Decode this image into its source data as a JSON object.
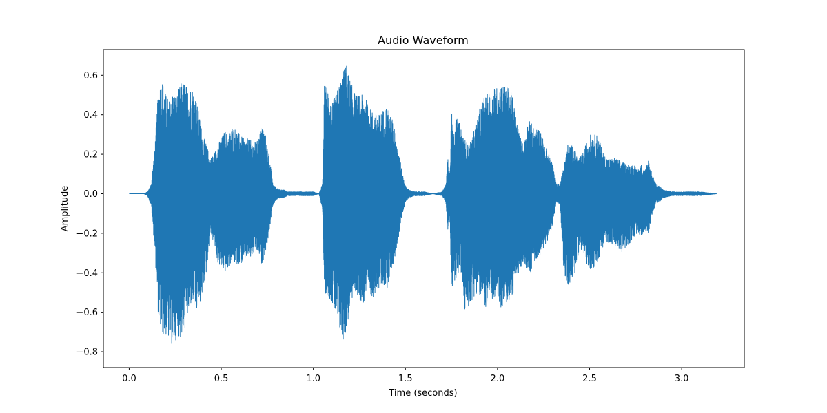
{
  "chart_data": {
    "type": "line",
    "title": "Audio Waveform",
    "xlabel": "Time (seconds)",
    "ylabel": "Amplitude",
    "xlim": [
      -0.14,
      3.34
    ],
    "ylim": [
      -0.88,
      0.73
    ],
    "xticks": [
      0.0,
      0.5,
      1.0,
      1.5,
      2.0,
      2.5,
      3.0
    ],
    "xtick_labels": [
      "0.0",
      "0.5",
      "1.0",
      "1.5",
      "2.0",
      "2.5",
      "3.0"
    ],
    "yticks": [
      -0.8,
      -0.6,
      -0.4,
      -0.2,
      0.0,
      0.2,
      0.4,
      0.6
    ],
    "ytick_labels": [
      "−0.8",
      "−0.6",
      "−0.4",
      "−0.2",
      "0.0",
      "0.2",
      "0.4",
      "0.6"
    ],
    "grid": false,
    "legend": "none",
    "color": "#1f77b4",
    "duration": 3.19,
    "series": [
      {
        "envelope_upper": [
          [
            0.0,
            0.0
          ],
          [
            0.08,
            0.0
          ],
          [
            0.1,
            0.01
          ],
          [
            0.12,
            0.05
          ],
          [
            0.14,
            0.25
          ],
          [
            0.16,
            0.55
          ],
          [
            0.18,
            0.58
          ],
          [
            0.2,
            0.5
          ],
          [
            0.22,
            0.47
          ],
          [
            0.24,
            0.52
          ],
          [
            0.26,
            0.5
          ],
          [
            0.28,
            0.56
          ],
          [
            0.3,
            0.57
          ],
          [
            0.32,
            0.53
          ],
          [
            0.34,
            0.55
          ],
          [
            0.36,
            0.5
          ],
          [
            0.38,
            0.4
          ],
          [
            0.4,
            0.3
          ],
          [
            0.42,
            0.25
          ],
          [
            0.44,
            0.18
          ],
          [
            0.46,
            0.2
          ],
          [
            0.48,
            0.25
          ],
          [
            0.5,
            0.28
          ],
          [
            0.52,
            0.32
          ],
          [
            0.54,
            0.3
          ],
          [
            0.56,
            0.34
          ],
          [
            0.58,
            0.33
          ],
          [
            0.6,
            0.3
          ],
          [
            0.62,
            0.28
          ],
          [
            0.64,
            0.28
          ],
          [
            0.66,
            0.27
          ],
          [
            0.68,
            0.26
          ],
          [
            0.7,
            0.27
          ],
          [
            0.72,
            0.36
          ],
          [
            0.74,
            0.3
          ],
          [
            0.76,
            0.2
          ],
          [
            0.78,
            0.05
          ],
          [
            0.8,
            0.03
          ],
          [
            0.82,
            0.02
          ],
          [
            0.84,
            0.02
          ],
          [
            0.86,
            0.01
          ],
          [
            0.9,
            0.01
          ],
          [
            0.95,
            0.01
          ],
          [
            1.0,
            0.01
          ],
          [
            1.03,
            0.0
          ],
          [
            1.05,
            0.05
          ],
          [
            1.06,
            0.55
          ],
          [
            1.08,
            0.55
          ],
          [
            1.1,
            0.45
          ],
          [
            1.12,
            0.5
          ],
          [
            1.14,
            0.55
          ],
          [
            1.16,
            0.62
          ],
          [
            1.18,
            0.66
          ],
          [
            1.2,
            0.58
          ],
          [
            1.22,
            0.52
          ],
          [
            1.24,
            0.5
          ],
          [
            1.26,
            0.5
          ],
          [
            1.28,
            0.5
          ],
          [
            1.3,
            0.44
          ],
          [
            1.32,
            0.42
          ],
          [
            1.34,
            0.41
          ],
          [
            1.36,
            0.4
          ],
          [
            1.38,
            0.43
          ],
          [
            1.4,
            0.45
          ],
          [
            1.42,
            0.4
          ],
          [
            1.44,
            0.35
          ],
          [
            1.46,
            0.25
          ],
          [
            1.48,
            0.12
          ],
          [
            1.5,
            0.04
          ],
          [
            1.52,
            0.02
          ],
          [
            1.55,
            0.01
          ],
          [
            1.6,
            0.01
          ],
          [
            1.65,
            0.0
          ],
          [
            1.7,
            0.01
          ],
          [
            1.72,
            0.05
          ],
          [
            1.73,
            0.2
          ],
          [
            1.74,
            0.1
          ],
          [
            1.75,
            0.42
          ],
          [
            1.76,
            0.35
          ],
          [
            1.78,
            0.38
          ],
          [
            1.8,
            0.35
          ],
          [
            1.82,
            0.28
          ],
          [
            1.84,
            0.25
          ],
          [
            1.86,
            0.28
          ],
          [
            1.88,
            0.35
          ],
          [
            1.9,
            0.42
          ],
          [
            1.92,
            0.48
          ],
          [
            1.94,
            0.5
          ],
          [
            1.96,
            0.52
          ],
          [
            1.98,
            0.54
          ],
          [
            2.0,
            0.54
          ],
          [
            2.02,
            0.56
          ],
          [
            2.04,
            0.55
          ],
          [
            2.06,
            0.54
          ],
          [
            2.08,
            0.5
          ],
          [
            2.1,
            0.4
          ],
          [
            2.12,
            0.3
          ],
          [
            2.14,
            0.25
          ],
          [
            2.16,
            0.36
          ],
          [
            2.18,
            0.37
          ],
          [
            2.2,
            0.32
          ],
          [
            2.22,
            0.34
          ],
          [
            2.24,
            0.3
          ],
          [
            2.26,
            0.24
          ],
          [
            2.28,
            0.2
          ],
          [
            2.3,
            0.15
          ],
          [
            2.32,
            0.05
          ],
          [
            2.34,
            0.05
          ],
          [
            2.36,
            0.15
          ],
          [
            2.38,
            0.25
          ],
          [
            2.4,
            0.25
          ],
          [
            2.42,
            0.22
          ],
          [
            2.44,
            0.18
          ],
          [
            2.46,
            0.2
          ],
          [
            2.48,
            0.25
          ],
          [
            2.5,
            0.3
          ],
          [
            2.52,
            0.3
          ],
          [
            2.54,
            0.3
          ],
          [
            2.56,
            0.25
          ],
          [
            2.58,
            0.2
          ],
          [
            2.6,
            0.18
          ],
          [
            2.62,
            0.18
          ],
          [
            2.64,
            0.18
          ],
          [
            2.66,
            0.17
          ],
          [
            2.68,
            0.16
          ],
          [
            2.7,
            0.15
          ],
          [
            2.72,
            0.15
          ],
          [
            2.74,
            0.15
          ],
          [
            2.76,
            0.12
          ],
          [
            2.78,
            0.15
          ],
          [
            2.8,
            0.12
          ],
          [
            2.82,
            0.18
          ],
          [
            2.84,
            0.1
          ],
          [
            2.86,
            0.05
          ],
          [
            2.88,
            0.04
          ],
          [
            2.9,
            0.02
          ],
          [
            2.95,
            0.01
          ],
          [
            3.0,
            0.01
          ],
          [
            3.05,
            0.01
          ],
          [
            3.1,
            0.01
          ],
          [
            3.19,
            0.0
          ]
        ],
        "envelope_lower": [
          [
            0.0,
            0.0
          ],
          [
            0.08,
            0.0
          ],
          [
            0.1,
            -0.01
          ],
          [
            0.12,
            -0.06
          ],
          [
            0.14,
            -0.3
          ],
          [
            0.16,
            -0.65
          ],
          [
            0.18,
            -0.72
          ],
          [
            0.2,
            -0.72
          ],
          [
            0.22,
            -0.75
          ],
          [
            0.24,
            -0.78
          ],
          [
            0.26,
            -0.72
          ],
          [
            0.28,
            -0.74
          ],
          [
            0.3,
            -0.7
          ],
          [
            0.32,
            -0.62
          ],
          [
            0.34,
            -0.55
          ],
          [
            0.36,
            -0.62
          ],
          [
            0.38,
            -0.58
          ],
          [
            0.4,
            -0.5
          ],
          [
            0.42,
            -0.4
          ],
          [
            0.44,
            -0.2
          ],
          [
            0.46,
            -0.25
          ],
          [
            0.48,
            -0.35
          ],
          [
            0.5,
            -0.38
          ],
          [
            0.52,
            -0.4
          ],
          [
            0.54,
            -0.38
          ],
          [
            0.56,
            -0.34
          ],
          [
            0.58,
            -0.36
          ],
          [
            0.6,
            -0.35
          ],
          [
            0.62,
            -0.36
          ],
          [
            0.64,
            -0.32
          ],
          [
            0.66,
            -0.33
          ],
          [
            0.68,
            -0.3
          ],
          [
            0.7,
            -0.3
          ],
          [
            0.72,
            -0.36
          ],
          [
            0.74,
            -0.3
          ],
          [
            0.76,
            -0.2
          ],
          [
            0.78,
            -0.06
          ],
          [
            0.8,
            -0.03
          ],
          [
            0.82,
            -0.02
          ],
          [
            0.84,
            -0.02
          ],
          [
            0.86,
            -0.01
          ],
          [
            0.9,
            -0.01
          ],
          [
            0.95,
            -0.01
          ],
          [
            1.0,
            -0.01
          ],
          [
            1.03,
            0.0
          ],
          [
            1.05,
            -0.08
          ],
          [
            1.06,
            -0.5
          ],
          [
            1.08,
            -0.52
          ],
          [
            1.1,
            -0.55
          ],
          [
            1.12,
            -0.62
          ],
          [
            1.14,
            -0.7
          ],
          [
            1.16,
            -0.75
          ],
          [
            1.18,
            -0.7
          ],
          [
            1.2,
            -0.58
          ],
          [
            1.22,
            -0.5
          ],
          [
            1.24,
            -0.52
          ],
          [
            1.26,
            -0.55
          ],
          [
            1.28,
            -0.56
          ],
          [
            1.3,
            -0.5
          ],
          [
            1.32,
            -0.52
          ],
          [
            1.34,
            -0.53
          ],
          [
            1.36,
            -0.47
          ],
          [
            1.38,
            -0.47
          ],
          [
            1.4,
            -0.48
          ],
          [
            1.42,
            -0.4
          ],
          [
            1.44,
            -0.34
          ],
          [
            1.46,
            -0.24
          ],
          [
            1.48,
            -0.12
          ],
          [
            1.5,
            -0.04
          ],
          [
            1.52,
            -0.02
          ],
          [
            1.55,
            -0.01
          ],
          [
            1.6,
            -0.01
          ],
          [
            1.65,
            0.0
          ],
          [
            1.7,
            -0.01
          ],
          [
            1.72,
            -0.05
          ],
          [
            1.73,
            -0.2
          ],
          [
            1.74,
            -0.1
          ],
          [
            1.75,
            -0.52
          ],
          [
            1.76,
            -0.45
          ],
          [
            1.78,
            -0.42
          ],
          [
            1.8,
            -0.38
          ],
          [
            1.82,
            -0.6
          ],
          [
            1.84,
            -0.58
          ],
          [
            1.86,
            -0.55
          ],
          [
            1.88,
            -0.5
          ],
          [
            1.9,
            -0.52
          ],
          [
            1.92,
            -0.55
          ],
          [
            1.94,
            -0.58
          ],
          [
            1.96,
            -0.55
          ],
          [
            1.98,
            -0.54
          ],
          [
            2.0,
            -0.55
          ],
          [
            2.02,
            -0.58
          ],
          [
            2.04,
            -0.56
          ],
          [
            2.06,
            -0.56
          ],
          [
            2.08,
            -0.52
          ],
          [
            2.1,
            -0.45
          ],
          [
            2.12,
            -0.4
          ],
          [
            2.14,
            -0.35
          ],
          [
            2.16,
            -0.38
          ],
          [
            2.18,
            -0.4
          ],
          [
            2.2,
            -0.35
          ],
          [
            2.22,
            -0.32
          ],
          [
            2.24,
            -0.3
          ],
          [
            2.26,
            -0.26
          ],
          [
            2.28,
            -0.22
          ],
          [
            2.3,
            -0.15
          ],
          [
            2.32,
            -0.05
          ],
          [
            2.34,
            -0.05
          ],
          [
            2.36,
            -0.4
          ],
          [
            2.38,
            -0.48
          ],
          [
            2.4,
            -0.45
          ],
          [
            2.42,
            -0.4
          ],
          [
            2.44,
            -0.3
          ],
          [
            2.46,
            -0.28
          ],
          [
            2.48,
            -0.35
          ],
          [
            2.5,
            -0.38
          ],
          [
            2.52,
            -0.38
          ],
          [
            2.54,
            -0.36
          ],
          [
            2.56,
            -0.3
          ],
          [
            2.58,
            -0.25
          ],
          [
            2.6,
            -0.25
          ],
          [
            2.62,
            -0.25
          ],
          [
            2.64,
            -0.28
          ],
          [
            2.66,
            -0.28
          ],
          [
            2.68,
            -0.3
          ],
          [
            2.7,
            -0.28
          ],
          [
            2.72,
            -0.25
          ],
          [
            2.74,
            -0.22
          ],
          [
            2.76,
            -0.2
          ],
          [
            2.78,
            -0.22
          ],
          [
            2.8,
            -0.18
          ],
          [
            2.82,
            -0.2
          ],
          [
            2.84,
            -0.1
          ],
          [
            2.86,
            -0.05
          ],
          [
            2.88,
            -0.04
          ],
          [
            2.9,
            -0.02
          ],
          [
            2.95,
            -0.01
          ],
          [
            3.0,
            -0.01
          ],
          [
            3.05,
            -0.01
          ],
          [
            3.1,
            -0.01
          ],
          [
            3.19,
            0.0
          ]
        ]
      }
    ]
  }
}
